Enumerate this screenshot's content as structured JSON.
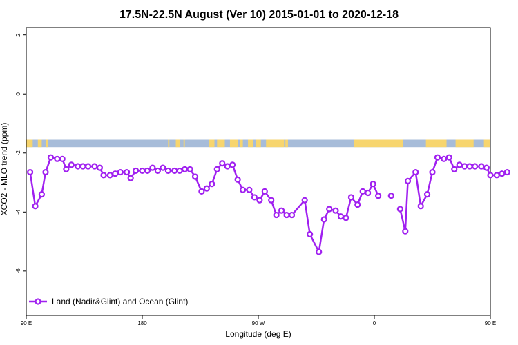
{
  "chart_data": {
    "type": "line",
    "title": "17.5N-22.5N August (Ver 10)   2015-01-01 to 2020-12-18",
    "xlabel": "Longitude (deg E)",
    "ylabel": "XCO2 - MLO trend (ppm)",
    "xlim": [
      90,
      450
    ],
    "ylim": [
      -7.5,
      2.25
    ],
    "x_ticks": [
      {
        "value": 90,
        "label": "90 E"
      },
      {
        "value": 180,
        "label": "180"
      },
      {
        "value": 270,
        "label": "90 W"
      },
      {
        "value": 360,
        "label": "0"
      },
      {
        "value": 450,
        "label": "90 E"
      },
      {
        "value": 540,
        "label": "180"
      }
    ],
    "y_ticks": [
      {
        "value": 2,
        "label": "2"
      },
      {
        "value": 0,
        "label": "0"
      },
      {
        "value": -2,
        "label": "-2"
      },
      {
        "value": -4,
        "label": "-4"
      },
      {
        "value": -6,
        "label": "-6"
      }
    ],
    "grid": false,
    "legend_position": "bottom-left",
    "series": [
      {
        "name": "Land (Nadir&Glint) and Ocean (Glint)",
        "color": "#a020f0",
        "points": [
          [
            93,
            -2.65
          ],
          [
            97,
            -3.8
          ],
          [
            102,
            -3.4
          ],
          [
            105,
            -2.65
          ],
          [
            109,
            -2.15
          ],
          [
            114,
            -2.2
          ],
          [
            118,
            -2.2
          ],
          [
            121,
            -2.55
          ],
          [
            125,
            -2.4
          ],
          [
            130,
            -2.45
          ],
          [
            134,
            -2.45
          ],
          [
            138,
            -2.45
          ],
          [
            143,
            -2.45
          ],
          [
            147,
            -2.5
          ],
          [
            150,
            -2.75
          ],
          [
            155,
            -2.75
          ],
          [
            159,
            -2.7
          ],
          [
            163,
            -2.65
          ],
          [
            168,
            -2.65
          ],
          [
            171,
            -2.85
          ],
          [
            175,
            -2.6
          ],
          [
            180,
            -2.6
          ],
          [
            184,
            -2.6
          ],
          [
            188,
            -2.5
          ],
          [
            192,
            -2.6
          ],
          [
            196,
            -2.5
          ],
          [
            200,
            -2.6
          ],
          [
            205,
            -2.6
          ],
          [
            209,
            -2.6
          ],
          [
            213,
            -2.55
          ],
          [
            217,
            -2.55
          ],
          [
            221,
            -2.8
          ],
          [
            226,
            -3.3
          ],
          [
            230,
            -3.2
          ],
          [
            234,
            -3.05
          ],
          [
            238,
            -2.55
          ],
          [
            242,
            -2.35
          ],
          [
            246,
            -2.45
          ],
          [
            250,
            -2.4
          ],
          [
            254,
            -2.9
          ],
          [
            258,
            -3.25
          ],
          [
            263,
            -3.25
          ],
          [
            267,
            -3.5
          ],
          [
            271,
            -3.6
          ],
          [
            275,
            -3.3
          ],
          [
            280,
            -3.6
          ],
          [
            284,
            -4.1
          ],
          [
            288,
            -3.95
          ],
          [
            292,
            -4.1
          ],
          [
            296,
            -4.1
          ],
          [
            306,
            -3.6
          ],
          [
            310,
            -4.75
          ],
          [
            317,
            -5.35
          ],
          [
            321,
            -4.25
          ],
          [
            325,
            -3.9
          ],
          [
            330,
            -3.95
          ],
          [
            334,
            -4.15
          ],
          [
            338,
            -4.2
          ],
          [
            342,
            -3.5
          ],
          [
            347,
            -3.75
          ],
          [
            351,
            -3.3
          ],
          [
            355,
            -3.35
          ],
          [
            359,
            -3.05
          ],
          [
            363,
            -3.45
          ],
          null,
          [
            373,
            -3.45
          ],
          null,
          [
            380,
            -3.9
          ],
          [
            384,
            -4.65
          ],
          [
            386,
            -2.95
          ],
          [
            392,
            -2.65
          ],
          [
            396,
            -3.8
          ],
          [
            401,
            -3.4
          ],
          [
            405,
            -2.65
          ],
          [
            409,
            -2.15
          ],
          [
            414,
            -2.2
          ],
          [
            418,
            -2.15
          ],
          [
            422,
            -2.55
          ],
          [
            426,
            -2.4
          ],
          [
            430,
            -2.45
          ],
          [
            434,
            -2.45
          ],
          [
            438,
            -2.45
          ],
          [
            443,
            -2.45
          ],
          [
            447,
            -2.5
          ],
          [
            450,
            -2.75
          ],
          [
            455,
            -2.75
          ],
          [
            459,
            -2.7
          ],
          [
            463,
            -2.65
          ]
        ]
      }
    ],
    "land_mask_band": {
      "y_range": [
        -1.55,
        -1.8
      ],
      "ocean_color": "#a7bcd9",
      "land_color": "#f7d56e",
      "land_spans": [
        [
          90,
          95
        ],
        [
          99,
          102
        ],
        [
          105,
          107
        ],
        [
          200,
          201
        ],
        [
          206,
          209
        ],
        [
          212,
          213
        ],
        [
          232,
          236
        ],
        [
          238,
          244
        ],
        [
          248,
          254
        ],
        [
          256,
          258
        ],
        [
          262,
          266
        ],
        [
          268,
          272
        ],
        [
          276,
          290
        ],
        [
          291,
          293
        ],
        [
          344,
          382
        ],
        [
          400,
          416
        ],
        [
          423,
          437
        ],
        [
          445,
          450
        ]
      ]
    }
  }
}
